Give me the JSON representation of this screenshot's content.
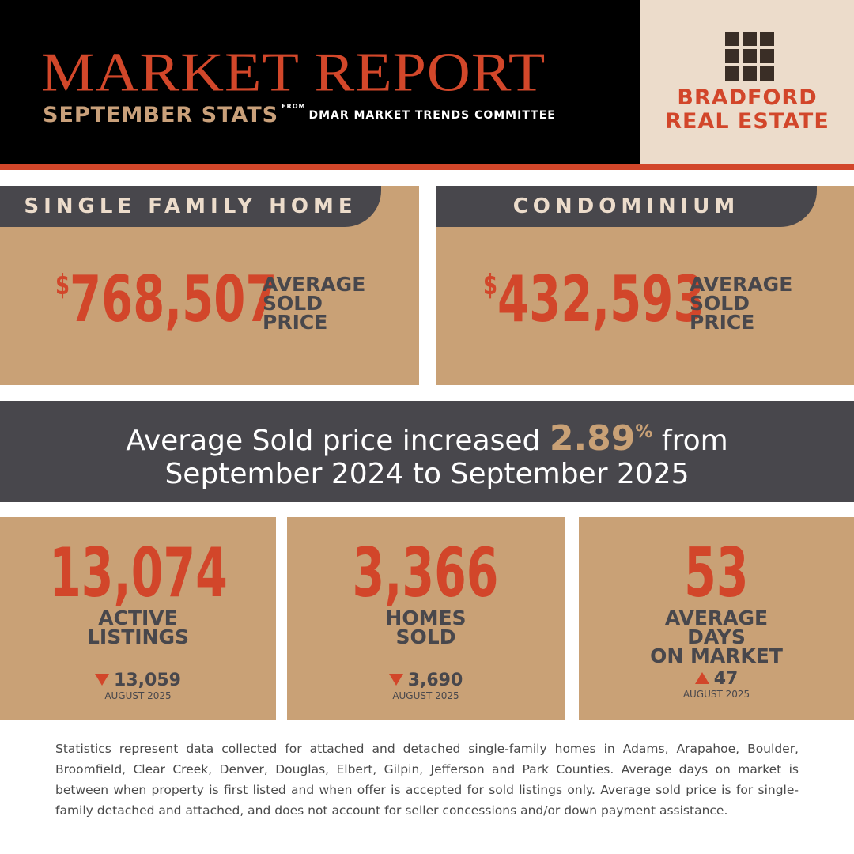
{
  "header": {
    "title": "MARKET REPORT",
    "subtitle": "SEPTEMBER STATS",
    "source_prefix": "FROM",
    "source": "DMAR MARKET TRENDS COMMITTEE"
  },
  "logo": {
    "lines": [
      "BRADFORD",
      "REAL ESTATE"
    ]
  },
  "price_cards": [
    {
      "label": "SINGLE FAMILY HOME",
      "currency": "$",
      "value": "768,507",
      "caption": [
        "AVERAGE",
        "SOLD",
        "PRICE"
      ]
    },
    {
      "label": "CONDOMINIUM",
      "currency": "$",
      "value": "432,593",
      "caption": [
        "AVERAGE",
        "SOLD",
        "PRICE"
      ]
    }
  ],
  "banner": {
    "before": "Average Sold price increased",
    "value": "2.89",
    "unit": "%",
    "after": "from",
    "line2": "September 2024 to September 2025"
  },
  "stats": [
    {
      "value": "13,074",
      "label": [
        "ACTIVE",
        "LISTINGS"
      ],
      "previous": "13,059",
      "period": "AUGUST 2025"
    },
    {
      "value": "3,366",
      "label": [
        "HOMES",
        "SOLD"
      ],
      "previous": "3,690",
      "period": "AUGUST 2025"
    },
    {
      "value": "53",
      "label": [
        "AVERAGE",
        "DAYS",
        "ON MARKET"
      ],
      "previous": "47",
      "period": "AUGUST 2025"
    }
  ],
  "footnote": "Statistics represent data collected for attached and detached single-family homes in Adams, Arapahoe, Boulder, Broomfield, Clear Creek, Denver, Douglas, Elbert, Gilpin, Jefferson and Park Counties. Average days on market is between when property is first listed and when offer is accepted for sold listings only. Average sold price is for single-family detached and attached, and does not account for seller concessions and/or down payment assistance."
}
